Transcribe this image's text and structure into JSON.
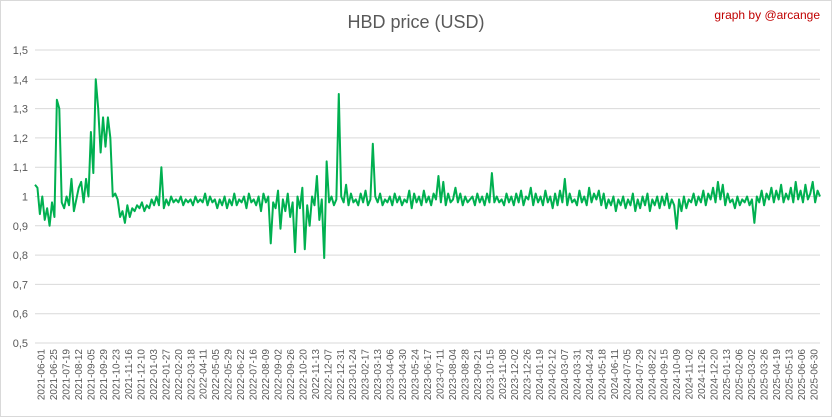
{
  "header": {
    "credit": "graph by @arcange"
  },
  "colors": {
    "line": "#00b050",
    "grid": "#d9d9d9",
    "text": "#595959",
    "credit": "#c00000"
  },
  "chart_data": {
    "type": "line",
    "title": "HBD price (USD)",
    "xlabel": "",
    "ylabel": "",
    "ylim": [
      0.5,
      1.5
    ],
    "grid": true,
    "yticks": [
      "0,5",
      "0,6",
      "0,7",
      "0,8",
      "0,9",
      "1",
      "1,1",
      "1,2",
      "1,3",
      "1,4",
      "1,5"
    ],
    "xticks": [
      "2021-06-01",
      "2021-06-25",
      "2021-07-19",
      "2021-08-12",
      "2021-09-05",
      "2021-09-29",
      "2021-10-23",
      "2021-11-16",
      "2021-12-10",
      "2022-01-03",
      "2022-01-27",
      "2022-02-20",
      "2022-03-18",
      "2022-04-11",
      "2022-05-05",
      "2022-05-29",
      "2022-06-22",
      "2022-07-16",
      "2022-08-09",
      "2022-09-02",
      "2022-09-26",
      "2022-10-20",
      "2022-11-13",
      "2022-12-07",
      "2022-12-31",
      "2023-01-24",
      "2023-02-17",
      "2023-03-13",
      "2023-04-06",
      "2023-04-30",
      "2023-05-24",
      "2023-06-17",
      "2023-07-11",
      "2023-08-04",
      "2023-08-28",
      "2023-09-21",
      "2023-10-15",
      "2023-11-08",
      "2023-12-02",
      "2023-12-26",
      "2024-01-19",
      "2024-02-12",
      "2024-03-07",
      "2024-03-31",
      "2024-04-24",
      "2024-05-18",
      "2024-06-11",
      "2024-07-05",
      "2024-07-29",
      "2024-08-22",
      "2024-09-15",
      "2024-10-09",
      "2024-11-02",
      "2024-11-26",
      "2024-12-20",
      "2025-01-13",
      "2025-02-06",
      "2025-03-02",
      "2025-03-26",
      "2025-04-19",
      "2025-05-13",
      "2025-06-06",
      "2025-06-30"
    ],
    "series": [
      {
        "values": [
          1.04,
          1.03,
          0.94,
          1.0,
          0.92,
          0.96,
          0.9,
          0.98,
          0.93,
          1.33,
          1.3,
          0.98,
          0.96,
          1.0,
          0.97,
          1.06,
          0.95,
          0.99,
          1.03,
          1.05,
          0.98,
          1.06,
          1.0,
          1.22,
          1.08,
          1.4,
          1.3,
          1.15,
          1.27,
          1.17,
          1.27,
          1.2,
          1.0,
          1.01,
          0.99,
          0.93,
          0.95,
          0.91,
          0.97,
          0.93,
          0.96,
          0.95,
          0.97,
          0.96,
          0.98,
          0.95,
          0.97,
          0.96,
          0.99,
          0.97,
          1.0,
          0.97,
          1.1,
          0.96,
          0.99,
          0.97,
          1.0,
          0.98,
          0.99,
          0.98,
          1.0,
          0.97,
          0.99,
          0.98,
          0.99,
          0.97,
          1.0,
          0.98,
          0.99,
          0.98,
          1.01,
          0.97,
          1.0,
          0.98,
          0.99,
          0.96,
          0.99,
          0.97,
          1.0,
          0.96,
          0.99,
          0.97,
          1.01,
          0.97,
          0.99,
          0.98,
          1.0,
          0.96,
          1.01,
          0.98,
          0.99,
          0.97,
          1.0,
          0.95,
          1.01,
          0.98,
          1.0,
          0.84,
          0.98,
          0.96,
          1.02,
          0.89,
          0.99,
          0.95,
          1.01,
          0.93,
          0.98,
          0.81,
          1.0,
          0.96,
          1.03,
          0.82,
          0.97,
          0.9,
          1.0,
          0.97,
          1.07,
          0.92,
          0.99,
          0.79,
          1.12,
          0.98,
          1.0,
          0.97,
          0.99,
          1.35,
          1.0,
          0.98,
          1.04,
          0.97,
          1.01,
          0.98,
          0.99,
          0.97,
          1.01,
          0.98,
          1.02,
          0.97,
          0.99,
          1.18,
          1.0,
          0.98,
          1.01,
          0.97,
          0.99,
          0.98,
          1.0,
          0.97,
          1.01,
          0.98,
          1.0,
          0.97,
          0.99,
          0.98,
          1.02,
          0.96,
          1.01,
          0.98,
          1.0,
          0.97,
          1.02,
          0.98,
          1.0,
          0.97,
          1.01,
          0.99,
          1.07,
          0.98,
          1.05,
          0.97,
          1.01,
          0.98,
          0.99,
          1.03,
          0.98,
          1.01,
          0.97,
          1.0,
          0.98,
          0.99,
          1.0,
          0.97,
          1.01,
          0.98,
          1.0,
          0.97,
          1.01,
          0.98,
          1.08,
          0.98,
          1.0,
          0.98,
          0.99,
          0.97,
          1.01,
          0.98,
          1.0,
          0.97,
          1.01,
          0.98,
          1.02,
          0.97,
          1.0,
          0.99,
          1.03,
          0.97,
          1.01,
          0.98,
          1.0,
          0.97,
          1.02,
          0.98,
          1.0,
          0.96,
          1.01,
          0.97,
          1.02,
          0.98,
          1.06,
          0.97,
          1.01,
          0.98,
          0.99,
          0.97,
          1.02,
          0.98,
          1.0,
          0.97,
          1.03,
          0.98,
          1.01,
          0.99,
          1.02,
          0.97,
          1.01,
          0.96,
          0.99,
          0.97,
          1.0,
          0.95,
          0.99,
          0.97,
          1.0,
          0.96,
          0.99,
          0.97,
          1.01,
          0.95,
          0.99,
          0.96,
          1.0,
          0.97,
          1.01,
          0.95,
          0.99,
          0.97,
          1.0,
          0.96,
          1.0,
          0.97,
          1.01,
          0.96,
          0.99,
          0.97,
          0.89,
          0.99,
          0.95,
          1.0,
          0.96,
          0.99,
          0.98,
          1.01,
          0.97,
          1.0,
          0.98,
          1.02,
          0.97,
          1.01,
          0.99,
          1.03,
          0.98,
          1.05,
          0.99,
          1.04,
          0.97,
          1.01,
          0.98,
          0.99,
          0.96,
          1.0,
          0.97,
          0.99,
          0.98,
          1.0,
          0.97,
          0.99,
          0.91,
          1.0,
          0.98,
          1.02,
          0.97,
          1.01,
          0.99,
          1.03,
          0.98,
          1.02,
          0.99,
          1.04,
          0.98,
          1.01,
          0.99,
          1.03,
          0.98,
          1.05,
          0.99,
          1.02,
          0.98,
          1.04,
          0.99,
          1.01,
          1.05,
          0.98,
          1.02,
          1.0
        ]
      }
    ]
  }
}
